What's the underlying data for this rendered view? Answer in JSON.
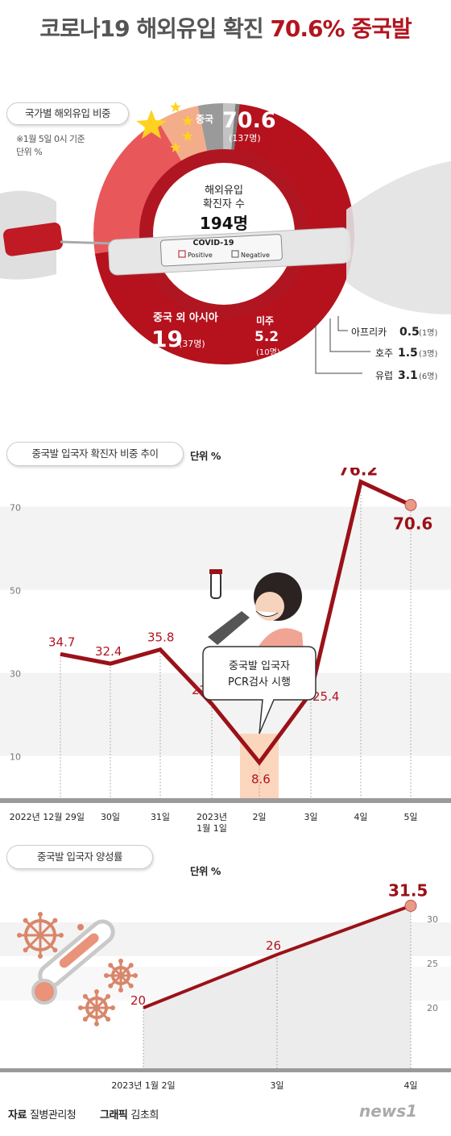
{
  "title": {
    "prefix": "코로나19 해외유입 확진",
    "highlight": "70.6% 중국발"
  },
  "donut": {
    "label": "국가별 해외유입 비중",
    "note": "※1월 5일 0시 기준",
    "unit": "단위 %",
    "center_line1": "해외유입",
    "center_line2": "확진자 수",
    "center_total": "194명",
    "test_brand": "COVID-19",
    "test_positive": "Positive",
    "test_negative": "Negative",
    "colors": {
      "china": "#b5121e",
      "asia": "#e8585a",
      "america": "#f4ad8a",
      "oceania": "#c3c3c3",
      "europe": "#9a9a9a",
      "africa": "#7a7a7a"
    },
    "segments": [
      {
        "name": "중국",
        "value": "70.6",
        "count": "(137명)"
      },
      {
        "name": "중국 외 아시아",
        "value": "19",
        "count": "(37명)"
      },
      {
        "name": "미주",
        "value": "5.2",
        "count": "(10명)"
      },
      {
        "name": "유럽",
        "value": "3.1",
        "count": "(6명)"
      },
      {
        "name": "호주",
        "value": "1.5",
        "count": "(3명)"
      },
      {
        "name": "아프리카",
        "value": "0.5",
        "count": "(1명)"
      }
    ]
  },
  "chart_data": [
    {
      "type": "pie",
      "title": "국가별 해외유입 비중",
      "categories": [
        "중국",
        "중국 외 아시아",
        "미주",
        "유럽",
        "호주",
        "아프리카"
      ],
      "values": [
        70.6,
        19,
        5.2,
        3.1,
        1.5,
        0.5
      ]
    },
    {
      "type": "line",
      "title": "중국발 입국자 확진자 비중 추이",
      "ylabel": "단위 %",
      "categories": [
        "2022년 12월 29일",
        "30일",
        "31일",
        "2023년 1월 1일",
        "2일",
        "3일",
        "4일",
        "5일"
      ],
      "values": [
        34.7,
        32.4,
        35.8,
        22.7,
        8.6,
        25.4,
        76.2,
        70.6
      ],
      "yticks": [
        10,
        30,
        50,
        70
      ],
      "ylim": [
        0,
        80
      ]
    },
    {
      "type": "area",
      "title": "중국발 입국자 양성률",
      "ylabel": "단위 %",
      "categories": [
        "2023년 1월 2일",
        "3일",
        "4일"
      ],
      "values": [
        20,
        26,
        31.5
      ],
      "yticks": [
        20,
        25,
        30
      ],
      "ylim": [
        16,
        32.5
      ]
    }
  ],
  "line_chart": {
    "label": "중국발 입국자 확진자 비중 추이",
    "unit": "단위 %",
    "tick_labels": [
      "2022년 12월 29일",
      "30일",
      "31일",
      "2023년",
      "2일",
      "3일",
      "4일",
      "5일"
    ],
    "tick_sub": "1월 1일",
    "value_labels": [
      "34.7",
      "32.4",
      "35.8",
      "22.7",
      "8.6",
      "25.4",
      "76.2",
      "70.6"
    ],
    "yticks": [
      "10",
      "30",
      "50",
      "70"
    ],
    "callout_line1": "중국발 입국자",
    "callout_line2": "PCR검사 시행",
    "color": "#9b1118"
  },
  "area_chart": {
    "label": "중국발 입국자 양성률",
    "unit": "단위 %",
    "tick_labels": [
      "2023년 1월 2일",
      "3일",
      "4일"
    ],
    "value_labels": [
      "20",
      "26",
      "31.5"
    ],
    "yticks": [
      "20",
      "25",
      "30"
    ],
    "color": "#9b1118"
  },
  "footer": {
    "source_label": "자료",
    "source": "질병관리청",
    "graphic_label": "그래픽",
    "graphic": "김초희",
    "brand": "news1"
  }
}
